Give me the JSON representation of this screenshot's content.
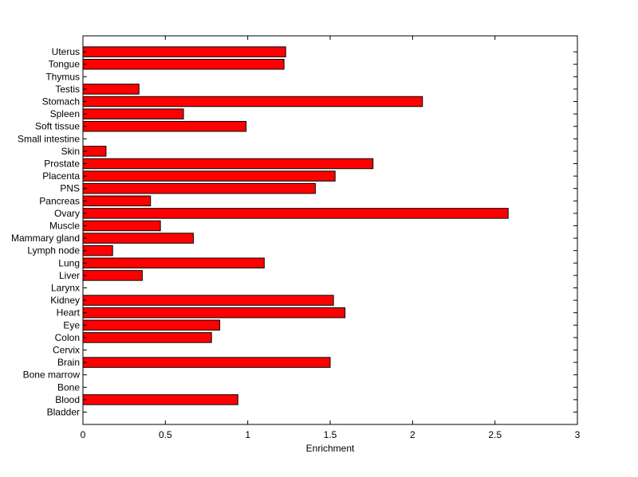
{
  "chart_data": {
    "type": "bar",
    "orientation": "horizontal",
    "title": "",
    "xlabel": "Enrichment",
    "ylabel": "",
    "xlim": [
      0,
      3
    ],
    "xticks": [
      0,
      0.5,
      1,
      1.5,
      2,
      2.5,
      3
    ],
    "xtick_labels": [
      "0",
      "0.5",
      "1",
      "1.5",
      "2",
      "2.5",
      "3"
    ],
    "categories": [
      "Bladder",
      "Blood",
      "Bone",
      "Bone marrow",
      "Brain",
      "Cervix",
      "Colon",
      "Eye",
      "Heart",
      "Kidney",
      "Larynx",
      "Liver",
      "Lung",
      "Lymph node",
      "Mammary gland",
      "Muscle",
      "Ovary",
      "Pancreas",
      "PNS",
      "Placenta",
      "Prostate",
      "Skin",
      "Small intestine",
      "Soft tissue",
      "Spleen",
      "Stomach",
      "Testis",
      "Thymus",
      "Tongue",
      "Uterus"
    ],
    "values": [
      0,
      0.94,
      0,
      0,
      1.5,
      0,
      0.78,
      0.83,
      1.59,
      1.52,
      0,
      0.36,
      1.1,
      0.18,
      0.67,
      0.47,
      2.58,
      0.41,
      1.41,
      1.53,
      1.76,
      0.14,
      0,
      0.99,
      0.61,
      2.06,
      0.34,
      0,
      1.22,
      1.23
    ],
    "bar_color": "#ff0000",
    "edge_color": "#000000",
    "grid": false,
    "legend": false
  }
}
